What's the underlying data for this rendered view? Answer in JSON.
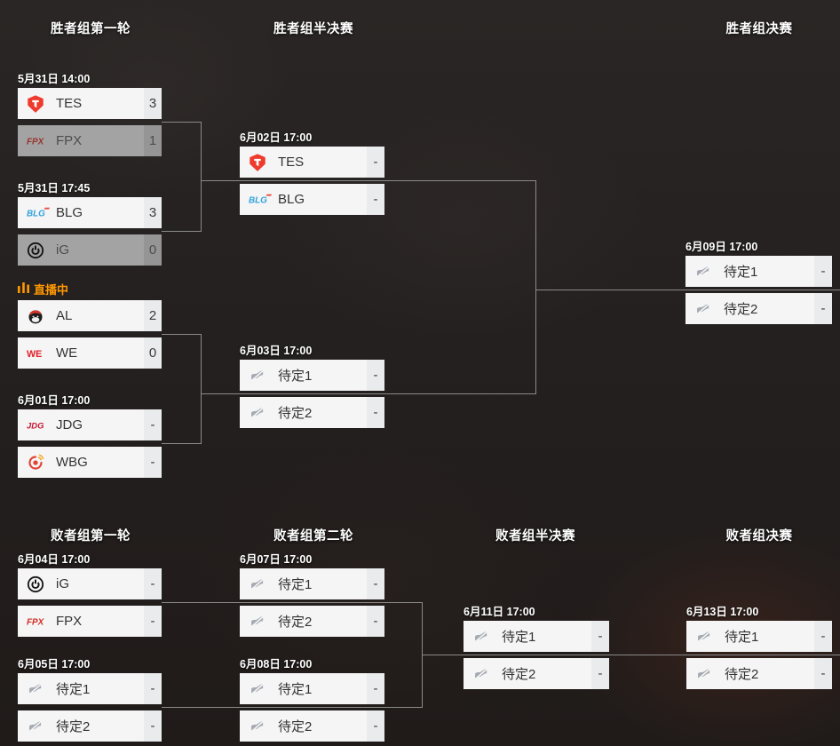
{
  "headers": {
    "winners": [
      {
        "label": "胜者组第一轮"
      },
      {
        "label": "胜者组半决赛"
      },
      {
        "label": "胜者组决赛"
      }
    ],
    "losers": [
      {
        "label": "败者组第一轮"
      },
      {
        "label": "败者组第二轮"
      },
      {
        "label": "败者组半决赛"
      },
      {
        "label": "败者组决赛"
      }
    ]
  },
  "live": {
    "label": "直播中",
    "icon": "live-bars-icon",
    "color": "#ff9800"
  },
  "matches": [
    {
      "date": "5月31日 14:00",
      "teams": [
        {
          "name": "TES",
          "logo": "tes",
          "score": "3",
          "eliminated": false
        },
        {
          "name": "FPX",
          "logo": "fpx",
          "score": "1",
          "eliminated": true
        }
      ]
    },
    {
      "date": "5月31日 17:45",
      "teams": [
        {
          "name": "BLG",
          "logo": "blg",
          "score": "3",
          "eliminated": false
        },
        {
          "name": "iG",
          "logo": "ig",
          "score": "0",
          "eliminated": true
        }
      ]
    },
    {
      "live": true,
      "teams": [
        {
          "name": "AL",
          "logo": "al",
          "score": "2",
          "eliminated": false
        },
        {
          "name": "WE",
          "logo": "we",
          "score": "0",
          "eliminated": false
        }
      ]
    },
    {
      "date": "6月01日 17:00",
      "teams": [
        {
          "name": "JDG",
          "logo": "jdg",
          "score": "-",
          "eliminated": false
        },
        {
          "name": "WBG",
          "logo": "wbg",
          "score": "-",
          "eliminated": false
        }
      ]
    },
    {
      "date": "6月02日 17:00",
      "teams": [
        {
          "name": "TES",
          "logo": "tes",
          "score": "-",
          "eliminated": false
        },
        {
          "name": "BLG",
          "logo": "blg",
          "score": "-",
          "eliminated": false
        }
      ]
    },
    {
      "date": "6月03日 17:00",
      "teams": [
        {
          "name": "待定1",
          "logo": "tbd",
          "score": "-",
          "eliminated": false
        },
        {
          "name": "待定2",
          "logo": "tbd",
          "score": "-",
          "eliminated": false
        }
      ]
    },
    {
      "date": "6月09日 17:00",
      "teams": [
        {
          "name": "待定1",
          "logo": "tbd",
          "score": "-",
          "eliminated": false
        },
        {
          "name": "待定2",
          "logo": "tbd",
          "score": "-",
          "eliminated": false
        }
      ]
    },
    {
      "date": "6月04日 17:00",
      "teams": [
        {
          "name": "iG",
          "logo": "ig",
          "score": "-",
          "eliminated": false
        },
        {
          "name": "FPX",
          "logo": "fpx",
          "score": "-",
          "eliminated": false
        }
      ]
    },
    {
      "date": "6月05日 17:00",
      "teams": [
        {
          "name": "待定1",
          "logo": "tbd",
          "score": "-",
          "eliminated": false
        },
        {
          "name": "待定2",
          "logo": "tbd",
          "score": "-",
          "eliminated": false
        }
      ]
    },
    {
      "date": "6月07日 17:00",
      "teams": [
        {
          "name": "待定1",
          "logo": "tbd",
          "score": "-",
          "eliminated": false
        },
        {
          "name": "待定2",
          "logo": "tbd",
          "score": "-",
          "eliminated": false
        }
      ]
    },
    {
      "date": "6月08日 17:00",
      "teams": [
        {
          "name": "待定1",
          "logo": "tbd",
          "score": "-",
          "eliminated": false
        },
        {
          "name": "待定2",
          "logo": "tbd",
          "score": "-",
          "eliminated": false
        }
      ]
    },
    {
      "date": "6月11日 17:00",
      "teams": [
        {
          "name": "待定1",
          "logo": "tbd",
          "score": "-",
          "eliminated": false
        },
        {
          "name": "待定2",
          "logo": "tbd",
          "score": "-",
          "eliminated": false
        }
      ]
    },
    {
      "date": "6月13日 17:00",
      "teams": [
        {
          "name": "待定1",
          "logo": "tbd",
          "score": "-",
          "eliminated": false
        },
        {
          "name": "待定2",
          "logo": "tbd",
          "score": "-",
          "eliminated": false
        }
      ]
    }
  ],
  "colors": {
    "background": "#242020",
    "box": "#f5f5f6",
    "box_score_strip": "#e9ebec",
    "eliminated_box": "#a3a3a3",
    "connector_line": "#8a8a8a",
    "live_accent": "#ff9800",
    "tes_red": "#ef3b2d",
    "fpx_red": "#d42b22",
    "blg_blue": "#33a3dc",
    "we_red": "#e32128",
    "jdg_red": "#c6152d",
    "wbg_red": "#e34234",
    "tbd_gray": "#a6abb1"
  }
}
